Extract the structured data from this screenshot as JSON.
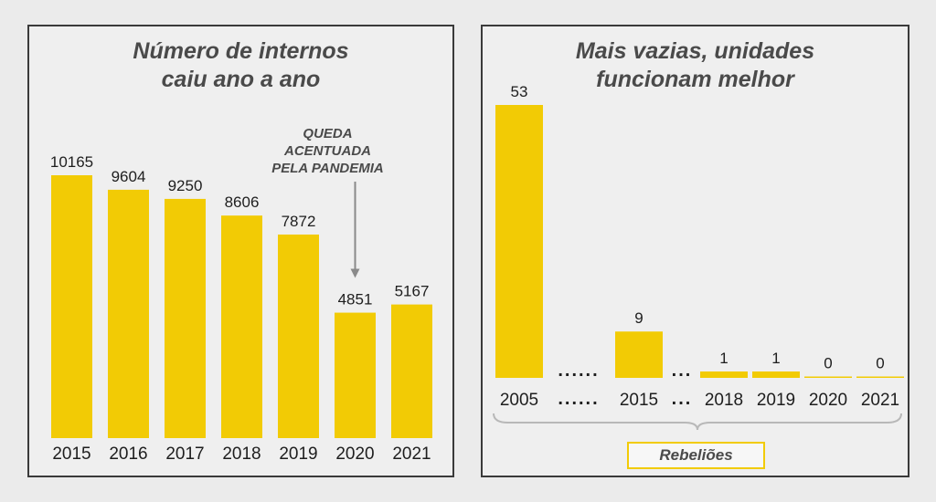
{
  "colors": {
    "bar": "#f2cb05",
    "text": "#1e1e1e",
    "title": "#4a4a4a",
    "annotation": "#4a4a4a",
    "arrow": "#8a8a8a",
    "brace": "#b8b8b8"
  },
  "chart_data": [
    {
      "type": "bar",
      "title": "Número de internos caiu ano a ano",
      "title_lines": [
        "Número de internos",
        "caiu ano a ano"
      ],
      "categories": [
        "2015",
        "2016",
        "2017",
        "2018",
        "2019",
        "2020",
        "2021"
      ],
      "values": [
        10165,
        9604,
        9250,
        8606,
        7872,
        4851,
        5167
      ],
      "ylim": [
        0,
        10165
      ],
      "grid": false,
      "annotation": {
        "lines": [
          "QUEDA",
          "ACENTUADA",
          "PELA PANDEMIA"
        ],
        "target_category": "2020"
      }
    },
    {
      "type": "bar",
      "title": "Mais vazias, unidades funcionam melhor",
      "title_lines": [
        "Mais vazias, unidades",
        "funcionam melhor"
      ],
      "categories": [
        "2005",
        "2015",
        "2018",
        "2019",
        "2020",
        "2021"
      ],
      "values": [
        53,
        9,
        1,
        1,
        0,
        0
      ],
      "ylim": [
        0,
        53
      ],
      "grid": false,
      "gap_marker": "......",
      "gap_marker_short": "...",
      "legend_label": "Rebeliões"
    }
  ]
}
